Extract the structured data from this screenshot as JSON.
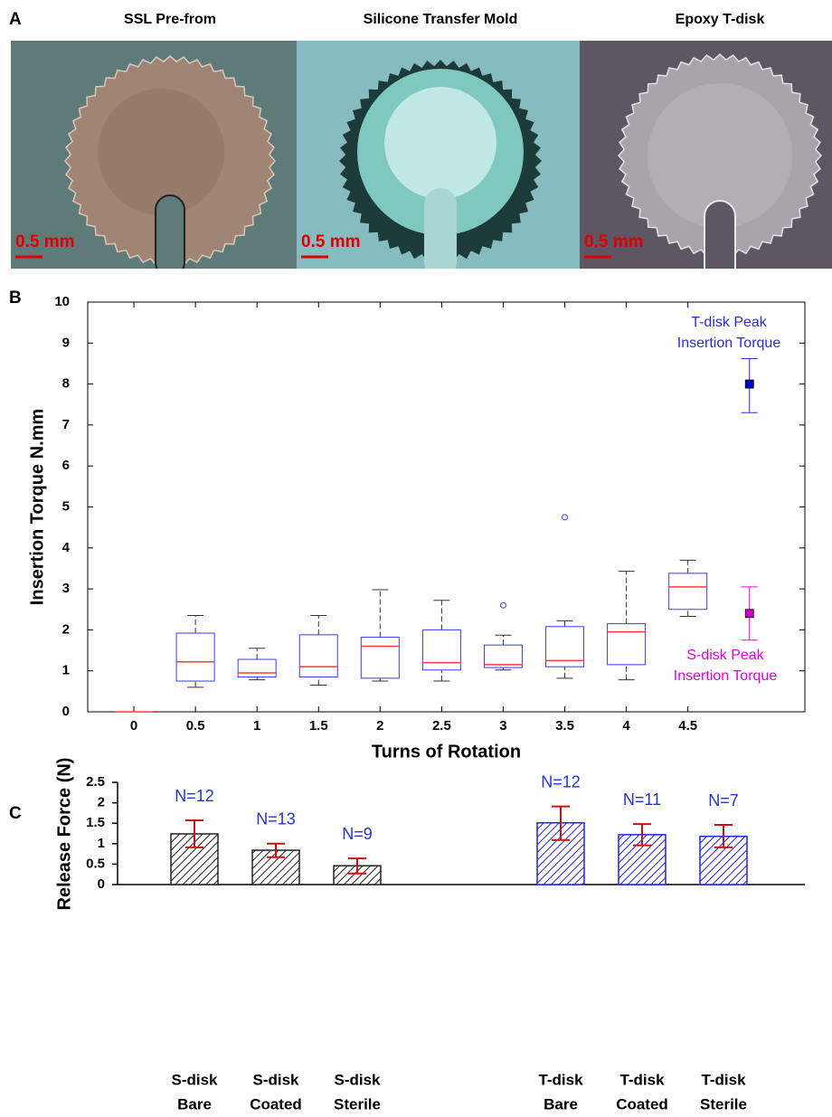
{
  "figure_a": {
    "label": "A",
    "images": [
      {
        "title": "SSL Pre-from",
        "scale": "0.5 mm"
      },
      {
        "title": "Silicone Transfer Mold",
        "scale": "0.5 mm"
      },
      {
        "title": "Epoxy T-disk",
        "scale": "0.5 mm"
      }
    ]
  },
  "chart_data": [
    {
      "type": "box",
      "panel": "B",
      "ylabel": "Insertion Torque N.mm",
      "xlabel": "Turns of Rotation",
      "x": [
        0,
        0.5,
        1,
        1.5,
        2,
        2.5,
        3,
        3.5,
        4,
        4.5
      ],
      "min": [
        0,
        0.6,
        0.78,
        0.65,
        0.75,
        0.75,
        1.02,
        0.82,
        0.78,
        2.33
      ],
      "q1": [
        0,
        0.75,
        0.85,
        0.85,
        0.82,
        1.02,
        1.08,
        1.1,
        1.15,
        2.5
      ],
      "median": [
        0,
        1.22,
        0.95,
        1.1,
        1.6,
        1.2,
        1.15,
        1.25,
        1.95,
        3.05
      ],
      "q3": [
        0,
        1.92,
        1.28,
        1.88,
        1.82,
        2.0,
        1.63,
        2.08,
        2.15,
        3.38
      ],
      "max": [
        0,
        2.35,
        1.55,
        2.35,
        2.98,
        2.72,
        1.87,
        2.22,
        3.43,
        3.7
      ],
      "outliers": [
        {
          "x": 3,
          "y": 2.6
        },
        {
          "x": 3.5,
          "y": 4.75
        }
      ],
      "box_color": "#3a3aff",
      "median_color": "#ff3a3a",
      "whisker_color": "#333333",
      "peaks": [
        {
          "label_lines": [
            "T-disk Peak",
            "Insertion Torque"
          ],
          "x": 5,
          "value": 8.0,
          "low": 7.3,
          "high": 8.62,
          "color": "#2a2ae0",
          "marker_color": "#0000cc"
        },
        {
          "label_lines": [
            "S-disk Peak",
            "Insertion Torque"
          ],
          "x": 5,
          "value": 2.4,
          "low": 1.75,
          "high": 3.05,
          "color": "#e000e0",
          "marker_color": "#cc00cc"
        }
      ],
      "xlim": [
        -0.375,
        5.45
      ],
      "ylim": [
        0,
        10
      ],
      "xticks": [
        0,
        0.5,
        1,
        1.5,
        2,
        2.5,
        3,
        3.5,
        4,
        4.5
      ],
      "yticks": [
        0,
        1,
        2,
        3,
        4,
        5,
        6,
        7,
        8,
        9,
        10
      ]
    },
    {
      "type": "bar",
      "panel": "C",
      "ylabel": "Release Force (N)",
      "categories": [
        [
          "S-disk",
          "Bare"
        ],
        [
          "S-disk",
          "Coated"
        ],
        [
          "S-disk",
          "Sterile"
        ],
        [
          "T-disk",
          "Bare"
        ],
        [
          "T-disk",
          "Coated"
        ],
        [
          "T-disk",
          "Sterile"
        ]
      ],
      "values": [
        1.24,
        0.84,
        0.46,
        1.51,
        1.22,
        1.18
      ],
      "err_low": [
        0.91,
        0.67,
        0.27,
        1.09,
        0.96,
        0.91
      ],
      "err_high": [
        1.57,
        1.0,
        0.64,
        1.91,
        1.48,
        1.46
      ],
      "n_labels": [
        "N=12",
        "N=13",
        "N=9",
        "N=12",
        "N=11",
        "N=7"
      ],
      "colors": [
        "#222222",
        "#222222",
        "#222222",
        "#2222ee",
        "#2222ee",
        "#2222ee"
      ],
      "n_label_color": "#2233dd",
      "error_color": "#cc1111",
      "ylim": [
        0,
        2.5
      ],
      "yticks": [
        0,
        0.5,
        1,
        1.5,
        2,
        2.5
      ]
    }
  ]
}
